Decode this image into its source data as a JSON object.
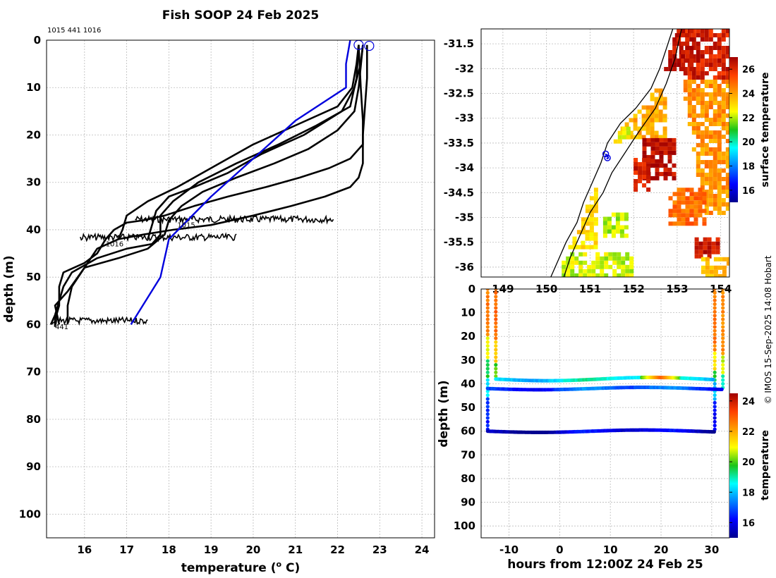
{
  "title": "Fish SOOP 24 Feb 2025",
  "credit": "© IMOS 15-Sep-2025 14:08 Hobart",
  "colors": {
    "profile": "#000000",
    "mean": "#0000dd",
    "coast": "#000000",
    "grid": "#bbbbbb"
  },
  "chart_data": [
    {
      "id": "profiles",
      "type": "line",
      "xlabel_pre": "temperature (",
      "xlabel_sup": "o",
      "xlabel_post": " C)",
      "ylabel": "depth (m)",
      "xlim": [
        15.1,
        24.3
      ],
      "ylim": [
        105,
        0
      ],
      "xticks": [
        16,
        17,
        18,
        19,
        20,
        21,
        22,
        23,
        24
      ],
      "yticks": [
        0,
        10,
        20,
        30,
        40,
        50,
        60,
        70,
        80,
        90,
        100
      ],
      "header_text": "1015 441 1016",
      "labels": [
        {
          "text": "1015",
          "x": 18.2,
          "y": 39.5
        },
        {
          "text": "1016",
          "x": 16.5,
          "y": 43.5
        },
        {
          "text": "441",
          "x": 15.3,
          "y": 61
        }
      ],
      "series": [
        {
          "name": "1015 down",
          "color": "#000000",
          "points": [
            [
              22.5,
              1
            ],
            [
              22.45,
              5
            ],
            [
              22.35,
              10
            ],
            [
              22.0,
              14
            ],
            [
              21.0,
              18
            ],
            [
              20.0,
              22
            ],
            [
              19.2,
              26
            ],
            [
              18.2,
              31
            ],
            [
              17.5,
              34
            ],
            [
              17.0,
              37
            ],
            [
              16.9,
              40
            ],
            [
              16.8,
              42
            ]
          ]
        },
        {
          "name": "1015 up",
          "color": "#000000",
          "points": [
            [
              22.6,
              1
            ],
            [
              22.55,
              5
            ],
            [
              22.4,
              10
            ],
            [
              22.1,
              15
            ],
            [
              21.2,
              20
            ],
            [
              20.2,
              24
            ],
            [
              19.4,
              28
            ],
            [
              18.6,
              31
            ],
            [
              18.0,
              33
            ],
            [
              17.7,
              36
            ],
            [
              17.6,
              39
            ],
            [
              17.5,
              42
            ]
          ]
        },
        {
          "name": "1016 down",
          "color": "#000000",
          "points": [
            [
              22.5,
              1
            ],
            [
              22.45,
              8
            ],
            [
              22.3,
              14
            ],
            [
              21.5,
              18
            ],
            [
              20.6,
              22
            ],
            [
              19.6,
              26
            ],
            [
              18.7,
              30
            ],
            [
              18.1,
              34
            ],
            [
              17.8,
              37
            ],
            [
              17.8,
              41
            ],
            [
              17.6,
              43
            ],
            [
              17.0,
              44
            ],
            [
              16.3,
              46
            ],
            [
              15.7,
              49
            ],
            [
              15.5,
              52
            ],
            [
              15.3,
              58
            ],
            [
              15.2,
              60
            ]
          ]
        },
        {
          "name": "1016 up",
          "color": "#000000",
          "points": [
            [
              22.6,
              1
            ],
            [
              22.5,
              10
            ],
            [
              22.4,
              15
            ],
            [
              22.0,
              19
            ],
            [
              21.3,
              23
            ],
            [
              20.5,
              26
            ],
            [
              19.6,
              29
            ],
            [
              18.8,
              32
            ],
            [
              18.3,
              35
            ],
            [
              18.0,
              38
            ],
            [
              17.9,
              41
            ],
            [
              17.5,
              44
            ],
            [
              16.8,
              46
            ],
            [
              16.0,
              48
            ],
            [
              15.6,
              53
            ],
            [
              15.3,
              56
            ],
            [
              15.4,
              60
            ]
          ]
        },
        {
          "name": "441 down",
          "color": "#000000",
          "points": [
            [
              22.5,
              1
            ],
            [
              22.55,
              10
            ],
            [
              22.6,
              17
            ],
            [
              22.6,
              22
            ],
            [
              22.3,
              25
            ],
            [
              21.8,
              27
            ],
            [
              21.1,
              29
            ],
            [
              20.3,
              31
            ],
            [
              19.4,
              33
            ],
            [
              18.6,
              35
            ],
            [
              17.9,
              37
            ],
            [
              17.4,
              38
            ],
            [
              17.0,
              38.5
            ],
            [
              16.7,
              40
            ],
            [
              16.5,
              42
            ],
            [
              16.3,
              45
            ],
            [
              16.0,
              47
            ],
            [
              15.5,
              49
            ],
            [
              15.4,
              52
            ],
            [
              15.4,
              56
            ],
            [
              15.3,
              59
            ],
            [
              15.3,
              60.5
            ]
          ]
        },
        {
          "name": "441 up",
          "color": "#000000",
          "points": [
            [
              22.7,
              1
            ],
            [
              22.7,
              8
            ],
            [
              22.65,
              14
            ],
            [
              22.6,
              20
            ],
            [
              22.6,
              26
            ],
            [
              22.5,
              29
            ],
            [
              22.3,
              31
            ],
            [
              21.7,
              33
            ],
            [
              20.9,
              35
            ],
            [
              20.0,
              37
            ],
            [
              19.0,
              39
            ],
            [
              18.1,
              40
            ],
            [
              17.4,
              41
            ],
            [
              16.8,
              42
            ],
            [
              16.3,
              44
            ],
            [
              16.0,
              48
            ],
            [
              15.7,
              52
            ],
            [
              15.6,
              56
            ],
            [
              15.6,
              59
            ],
            [
              15.6,
              60
            ]
          ]
        },
        {
          "name": "mean",
          "color": "#0000dd",
          "points": [
            [
              22.3,
              0
            ],
            [
              22.2,
              5
            ],
            [
              22.2,
              10
            ],
            [
              21.0,
              17
            ],
            [
              20.0,
              25
            ],
            [
              19.0,
              33
            ],
            [
              18.0,
              42
            ],
            [
              17.8,
              50
            ],
            [
              17.1,
              60
            ]
          ]
        }
      ],
      "wiggles": [
        {
          "x1": 17.2,
          "x2": 21.9,
          "y": 37.8
        },
        {
          "x1": 15.9,
          "x2": 19.6,
          "y": 41.6
        },
        {
          "x1": 15.2,
          "x2": 17.5,
          "y": 59.2
        }
      ],
      "surface_markers": [
        {
          "x": 22.5,
          "y": 1
        },
        {
          "x": 22.75,
          "y": 1.2
        }
      ]
    },
    {
      "id": "sst_map",
      "type": "heatmap",
      "xlim": [
        148.5,
        154.2
      ],
      "ylim": [
        -36.2,
        -31.2
      ],
      "xticks": [
        149,
        150,
        151,
        152,
        153,
        154
      ],
      "yticks": [
        -31.5,
        -32,
        -32.5,
        -33,
        -33.5,
        -34,
        -34.5,
        -35,
        -35.5,
        -36
      ],
      "colorbar_label": "surface temperature",
      "colorbar_range": [
        15,
        27
      ],
      "colorbar_ticks": [
        16,
        18,
        20,
        22,
        24,
        26
      ],
      "coastline": [
        [
          152.9,
          -31.2
        ],
        [
          152.75,
          -31.6
        ],
        [
          152.6,
          -32.0
        ],
        [
          152.4,
          -32.4
        ],
        [
          152.05,
          -32.8
        ],
        [
          151.7,
          -33.1
        ],
        [
          151.4,
          -33.5
        ],
        [
          151.25,
          -33.9
        ],
        [
          151.05,
          -34.3
        ],
        [
          150.85,
          -34.7
        ],
        [
          150.7,
          -35.1
        ],
        [
          150.45,
          -35.5
        ],
        [
          150.25,
          -35.9
        ],
        [
          150.1,
          -36.2
        ]
      ],
      "contour": [
        [
          153.1,
          -31.2
        ],
        [
          152.95,
          -31.8
        ],
        [
          152.75,
          -32.3
        ],
        [
          152.5,
          -32.8
        ],
        [
          152.1,
          -33.3
        ],
        [
          151.8,
          -33.7
        ],
        [
          151.5,
          -34.1
        ],
        [
          151.3,
          -34.5
        ],
        [
          151.0,
          -34.9
        ],
        [
          150.75,
          -35.4
        ],
        [
          150.55,
          -35.8
        ],
        [
          150.4,
          -36.2
        ]
      ],
      "ship_track": [
        [
          151.35,
          -33.72
        ],
        [
          151.4,
          -33.75
        ],
        [
          151.42,
          -33.8
        ],
        [
          151.38,
          -33.82
        ]
      ],
      "ship_markers": [
        [
          151.36,
          -33.72
        ],
        [
          151.4,
          -33.8
        ]
      ],
      "patches": [
        {
          "lon": [
            152.95,
            154.2
          ],
          "lat": [
            -31.2,
            -34.9
          ],
          "temp": 24.5,
          "style": "warm-core"
        },
        {
          "lon": [
            152.6,
            153.3
          ],
          "lat": [
            -31.2,
            -32.0
          ],
          "temp": 26.5
        },
        {
          "lon": [
            151.7,
            152.7
          ],
          "lat": [
            -32.4,
            -33.4
          ],
          "temp": 23.8
        },
        {
          "lon": [
            151.25,
            151.85
          ],
          "lat": [
            -33.0,
            -33.5
          ],
          "temp": 22.5
        },
        {
          "lon": [
            152.2,
            152.95
          ],
          "lat": [
            -33.4,
            -34.2
          ],
          "temp": 26.6
        },
        {
          "lon": [
            152.0,
            152.3
          ],
          "lat": [
            -33.8,
            -34.4
          ],
          "temp": 26.2
        },
        {
          "lon": [
            152.8,
            153.6
          ],
          "lat": [
            -34.4,
            -35.1
          ],
          "temp": 24.8
        },
        {
          "lon": [
            153.4,
            153.9
          ],
          "lat": [
            -35.4,
            -35.8
          ],
          "temp": 26.4
        },
        {
          "lon": [
            150.7,
            151.15
          ],
          "lat": [
            -34.4,
            -35.3
          ],
          "temp": 23.2
        },
        {
          "lon": [
            151.3,
            151.8
          ],
          "lat": [
            -34.9,
            -35.4
          ],
          "temp": 22.0
        },
        {
          "lon": [
            150.5,
            151.1
          ],
          "lat": [
            -35.3,
            -35.6
          ],
          "temp": 23.0
        },
        {
          "lon": [
            150.35,
            152.0
          ],
          "lat": [
            -35.7,
            -36.2
          ],
          "temp": 22.2
        },
        {
          "lon": [
            153.55,
            154.2
          ],
          "lat": [
            -35.8,
            -36.2
          ],
          "temp": 23.5
        }
      ]
    },
    {
      "id": "section",
      "type": "scatter",
      "xlabel": "hours from 12:00Z 24 Feb 25",
      "ylabel": "depth (m)",
      "xlim": [
        -15.5,
        33.5
      ],
      "ylim": [
        105,
        0
      ],
      "xticks": [
        -10,
        0,
        10,
        20,
        30
      ],
      "yticks": [
        0,
        10,
        20,
        30,
        40,
        50,
        60,
        70,
        80,
        90,
        100
      ],
      "colorbar_label": "temperature",
      "colorbar_range": [
        15,
        24.5
      ],
      "colorbar_ticks": [
        16,
        18,
        20,
        22,
        24
      ],
      "verticals": [
        {
          "x": -14.2,
          "top": 0,
          "bottom": 60,
          "layers": [
            [
              0,
              20,
              22.6
            ],
            [
              20,
              30,
              21.0
            ],
            [
              30,
              38,
              19.5
            ],
            [
              38,
              45,
              18.5
            ],
            [
              45,
              60,
              16.5
            ]
          ]
        },
        {
          "x": -12.6,
          "top": 0,
          "bottom": 38,
          "layers": [
            [
              0,
              22,
              22.8
            ],
            [
              22,
              32,
              21.5
            ],
            [
              32,
              38,
              20.0
            ]
          ]
        },
        {
          "x": 30.6,
          "top": 0,
          "bottom": 60,
          "layers": [
            [
              0,
              26,
              22.6
            ],
            [
              26,
              34,
              21.2
            ],
            [
              34,
              40,
              19.5
            ],
            [
              40,
              48,
              18.0
            ],
            [
              48,
              60,
              16.2
            ]
          ]
        },
        {
          "x": 32.2,
          "top": 0,
          "bottom": 42,
          "layers": [
            [
              0,
              28,
              22.4
            ],
            [
              28,
              36,
              20.6
            ],
            [
              36,
              42,
              19.0
            ]
          ]
        }
      ],
      "bands": [
        {
          "x1": -12.6,
          "x2": 30.6,
          "depth": 38,
          "amp": 0.7,
          "base": 18.4,
          "var": 0.9,
          "hot": 23.0,
          "hot_at": 20
        },
        {
          "x1": -14.2,
          "x2": 32.2,
          "depth": 42,
          "amp": 0.5,
          "base": 16.8,
          "var": 1.0
        },
        {
          "x1": -14.2,
          "x2": 30.6,
          "depth": 60,
          "amp": 0.5,
          "base": 15.6,
          "var": 1.1
        }
      ]
    }
  ]
}
